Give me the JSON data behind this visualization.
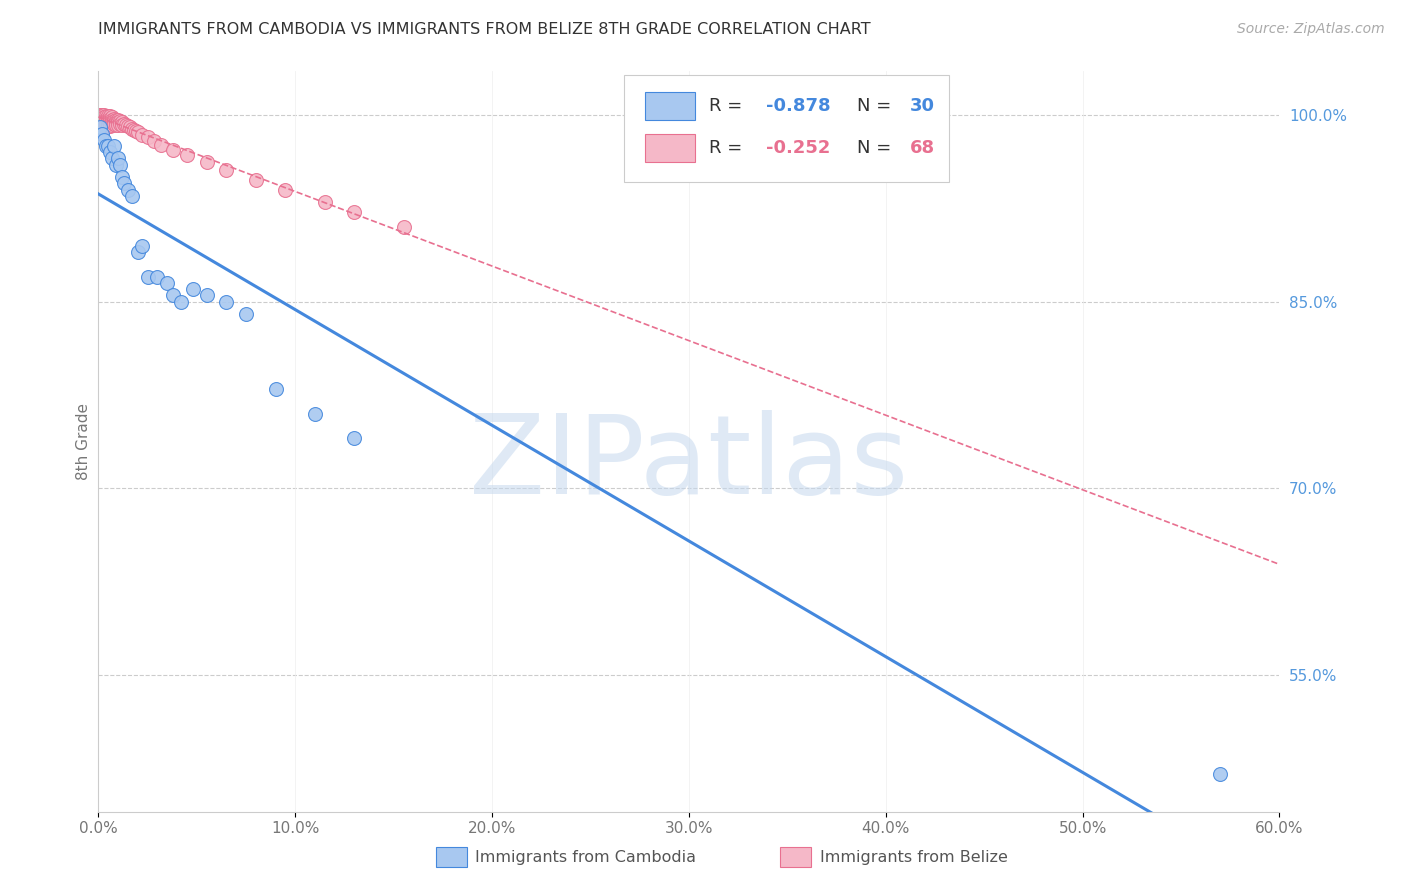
{
  "title": "IMMIGRANTS FROM CAMBODIA VS IMMIGRANTS FROM BELIZE 8TH GRADE CORRELATION CHART",
  "source": "Source: ZipAtlas.com",
  "ylabel": "8th Grade",
  "legend_blue_r": "-0.878",
  "legend_blue_n": "30",
  "legend_pink_r": "-0.252",
  "legend_pink_n": "68",
  "blue_color": "#A8C8F0",
  "pink_color": "#F5B8C8",
  "blue_line_color": "#4488DD",
  "pink_line_color": "#E87090",
  "right_axis_color": "#5599DD",
  "watermark": "ZIPatlas",
  "xlim": [
    0.0,
    0.6
  ],
  "ylim": [
    0.44,
    1.035
  ],
  "xticks": [
    0.0,
    0.1,
    0.2,
    0.3,
    0.4,
    0.5,
    0.6
  ],
  "grid_vals": [
    1.0,
    0.85,
    0.7,
    0.55
  ],
  "blue_x": [
    0.001,
    0.002,
    0.003,
    0.004,
    0.005,
    0.006,
    0.007,
    0.008,
    0.009,
    0.01,
    0.011,
    0.012,
    0.013,
    0.015,
    0.017,
    0.02,
    0.022,
    0.025,
    0.03,
    0.035,
    0.038,
    0.042,
    0.048,
    0.055,
    0.065,
    0.075,
    0.09,
    0.11,
    0.13,
    0.57
  ],
  "blue_y": [
    0.99,
    0.985,
    0.98,
    0.975,
    0.975,
    0.97,
    0.965,
    0.975,
    0.96,
    0.965,
    0.96,
    0.95,
    0.945,
    0.94,
    0.935,
    0.89,
    0.895,
    0.87,
    0.87,
    0.865,
    0.855,
    0.85,
    0.86,
    0.855,
    0.85,
    0.84,
    0.78,
    0.76,
    0.74,
    0.47
  ],
  "pink_x": [
    0.001,
    0.001,
    0.001,
    0.001,
    0.001,
    0.002,
    0.002,
    0.002,
    0.002,
    0.002,
    0.002,
    0.003,
    0.003,
    0.003,
    0.003,
    0.003,
    0.004,
    0.004,
    0.004,
    0.004,
    0.005,
    0.005,
    0.005,
    0.005,
    0.005,
    0.006,
    0.006,
    0.006,
    0.006,
    0.006,
    0.007,
    0.007,
    0.007,
    0.007,
    0.008,
    0.008,
    0.008,
    0.009,
    0.009,
    0.009,
    0.01,
    0.01,
    0.01,
    0.011,
    0.011,
    0.012,
    0.012,
    0.013,
    0.014,
    0.015,
    0.016,
    0.017,
    0.018,
    0.019,
    0.02,
    0.022,
    0.025,
    0.028,
    0.032,
    0.038,
    0.045,
    0.055,
    0.065,
    0.08,
    0.095,
    0.115,
    0.13,
    0.155
  ],
  "pink_y": [
    1.0,
    1.0,
    0.998,
    0.996,
    0.995,
    1.0,
    0.998,
    0.996,
    0.995,
    0.993,
    0.992,
    1.0,
    0.998,
    0.996,
    0.994,
    0.993,
    0.999,
    0.997,
    0.995,
    0.993,
    0.999,
    0.997,
    0.995,
    0.993,
    0.991,
    0.999,
    0.997,
    0.995,
    0.993,
    0.991,
    0.998,
    0.996,
    0.994,
    0.992,
    0.997,
    0.995,
    0.993,
    0.996,
    0.994,
    0.992,
    0.996,
    0.994,
    0.992,
    0.995,
    0.993,
    0.994,
    0.992,
    0.993,
    0.992,
    0.991,
    0.99,
    0.989,
    0.988,
    0.987,
    0.986,
    0.984,
    0.982,
    0.979,
    0.976,
    0.972,
    0.968,
    0.962,
    0.956,
    0.948,
    0.94,
    0.93,
    0.922,
    0.91
  ],
  "legend_x1": "Immigrants from Cambodia",
  "legend_x2": "Immigrants from Belize"
}
